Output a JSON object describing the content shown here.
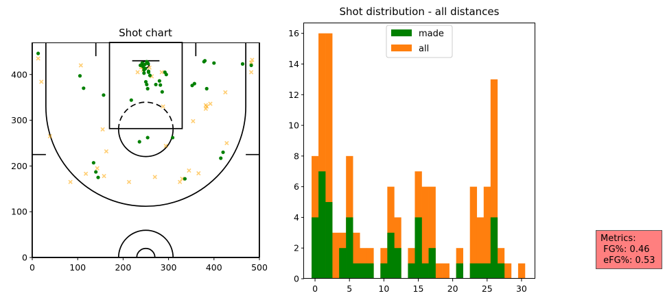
{
  "chart_data": [
    {
      "type": "scatter",
      "title": "Shot chart",
      "xlim": [
        0,
        500
      ],
      "ylim": [
        0,
        470
      ],
      "x_ticks": [
        0,
        100,
        200,
        300,
        400,
        500
      ],
      "y_ticks": [
        0,
        100,
        200,
        300,
        400
      ],
      "grid": false,
      "colors": {
        "made": "#008000",
        "missed": "#FFA500",
        "court": "#000000"
      },
      "series": [
        {
          "marker": "dot",
          "points": [
            [
              13,
              446
            ],
            [
              105,
              397
            ],
            [
              113,
              370
            ],
            [
              157,
              355
            ],
            [
              135,
              207
            ],
            [
              140,
              187
            ],
            [
              145,
              175
            ],
            [
              218,
              344
            ],
            [
              236,
              253
            ],
            [
              254,
              262
            ],
            [
              238,
              420
            ],
            [
              242,
              425
            ],
            [
              244,
              417
            ],
            [
              246,
              410
            ],
            [
              248,
              422
            ],
            [
              252,
              428
            ],
            [
              255,
              424
            ],
            [
              249,
              413
            ],
            [
              256,
              407
            ],
            [
              259,
              398
            ],
            [
              246,
              403
            ],
            [
              250,
              384
            ],
            [
              252,
              378
            ],
            [
              254,
              369
            ],
            [
              256,
              405
            ],
            [
              272,
              378
            ],
            [
              280,
              386
            ],
            [
              286,
              362
            ],
            [
              282,
              377
            ],
            [
              292,
              405
            ],
            [
              295,
              400
            ],
            [
              309,
              262
            ],
            [
              336,
              172
            ],
            [
              352,
              376
            ],
            [
              357,
              380
            ],
            [
              380,
              430
            ],
            [
              378,
              428
            ],
            [
              384,
              369
            ],
            [
              400,
              425
            ],
            [
              415,
              217
            ],
            [
              420,
              230
            ],
            [
              463,
              423
            ],
            [
              482,
              420
            ]
          ]
        },
        {
          "marker": "x",
          "points": [
            [
              13,
              435
            ],
            [
              20,
              384
            ],
            [
              39,
              265
            ],
            [
              84,
              165
            ],
            [
              107,
              420
            ],
            [
              118,
              183
            ],
            [
              143,
              195
            ],
            [
              155,
              280
            ],
            [
              158,
              178
            ],
            [
              163,
              232
            ],
            [
              213,
              165
            ],
            [
              232,
              405
            ],
            [
              240,
              416
            ],
            [
              244,
              410
            ],
            [
              258,
              415
            ],
            [
              263,
              396
            ],
            [
              270,
              176
            ],
            [
              285,
              405
            ],
            [
              288,
              330
            ],
            [
              294,
              244
            ],
            [
              325,
              165
            ],
            [
              330,
              172
            ],
            [
              345,
              190
            ],
            [
              354,
              298
            ],
            [
              366,
              184
            ],
            [
              382,
              333
            ],
            [
              382,
              325
            ],
            [
              384,
              330
            ],
            [
              392,
              336
            ],
            [
              425,
              361
            ],
            [
              428,
              250
            ],
            [
              482,
              405
            ],
            [
              484,
              432
            ],
            [
              482,
              426
            ]
          ]
        }
      ]
    },
    {
      "type": "bar",
      "title": "Shot distribution - all distances",
      "x_ticks": [
        0,
        5,
        10,
        15,
        20,
        25,
        30
      ],
      "y_ticks": [
        0,
        2,
        4,
        6,
        8,
        10,
        12,
        14,
        16
      ],
      "xlim": [
        -1.6,
        32.0
      ],
      "ylim": [
        0,
        16.7
      ],
      "bin_width": 1,
      "bin_starts": [
        -0.5,
        0.5,
        1.5,
        2.5,
        3.5,
        4.5,
        5.5,
        6.5,
        7.5,
        8.5,
        9.5,
        10.5,
        11.5,
        12.5,
        13.5,
        14.5,
        15.5,
        16.5,
        17.5,
        18.5,
        19.5,
        20.5,
        21.5,
        22.5,
        23.5,
        24.5,
        25.5,
        26.5,
        27.5,
        28.5,
        29.5
      ],
      "legend_position": "upper center",
      "series": [
        {
          "name": "all",
          "color": "#FF7F0E",
          "values": [
            8,
            16,
            16,
            3,
            3,
            8,
            3,
            2,
            2,
            0,
            2,
            6,
            4,
            0,
            2,
            7,
            6,
            6,
            1,
            1,
            0,
            2,
            0,
            6,
            4,
            6,
            13,
            2,
            1,
            0,
            1
          ]
        },
        {
          "name": "made",
          "color": "#008000",
          "values": [
            4,
            7,
            5,
            0,
            2,
            4,
            1,
            1,
            1,
            0,
            1,
            3,
            2,
            0,
            1,
            4,
            1,
            2,
            0,
            0,
            0,
            1,
            0,
            1,
            1,
            1,
            4,
            1,
            0,
            0,
            0
          ]
        }
      ],
      "legend": [
        "made",
        "all"
      ]
    }
  ],
  "metrics": {
    "text": "Metrics:\n FG%: 0.46\n eFG%: 0.53",
    "color": "#FF0000"
  }
}
